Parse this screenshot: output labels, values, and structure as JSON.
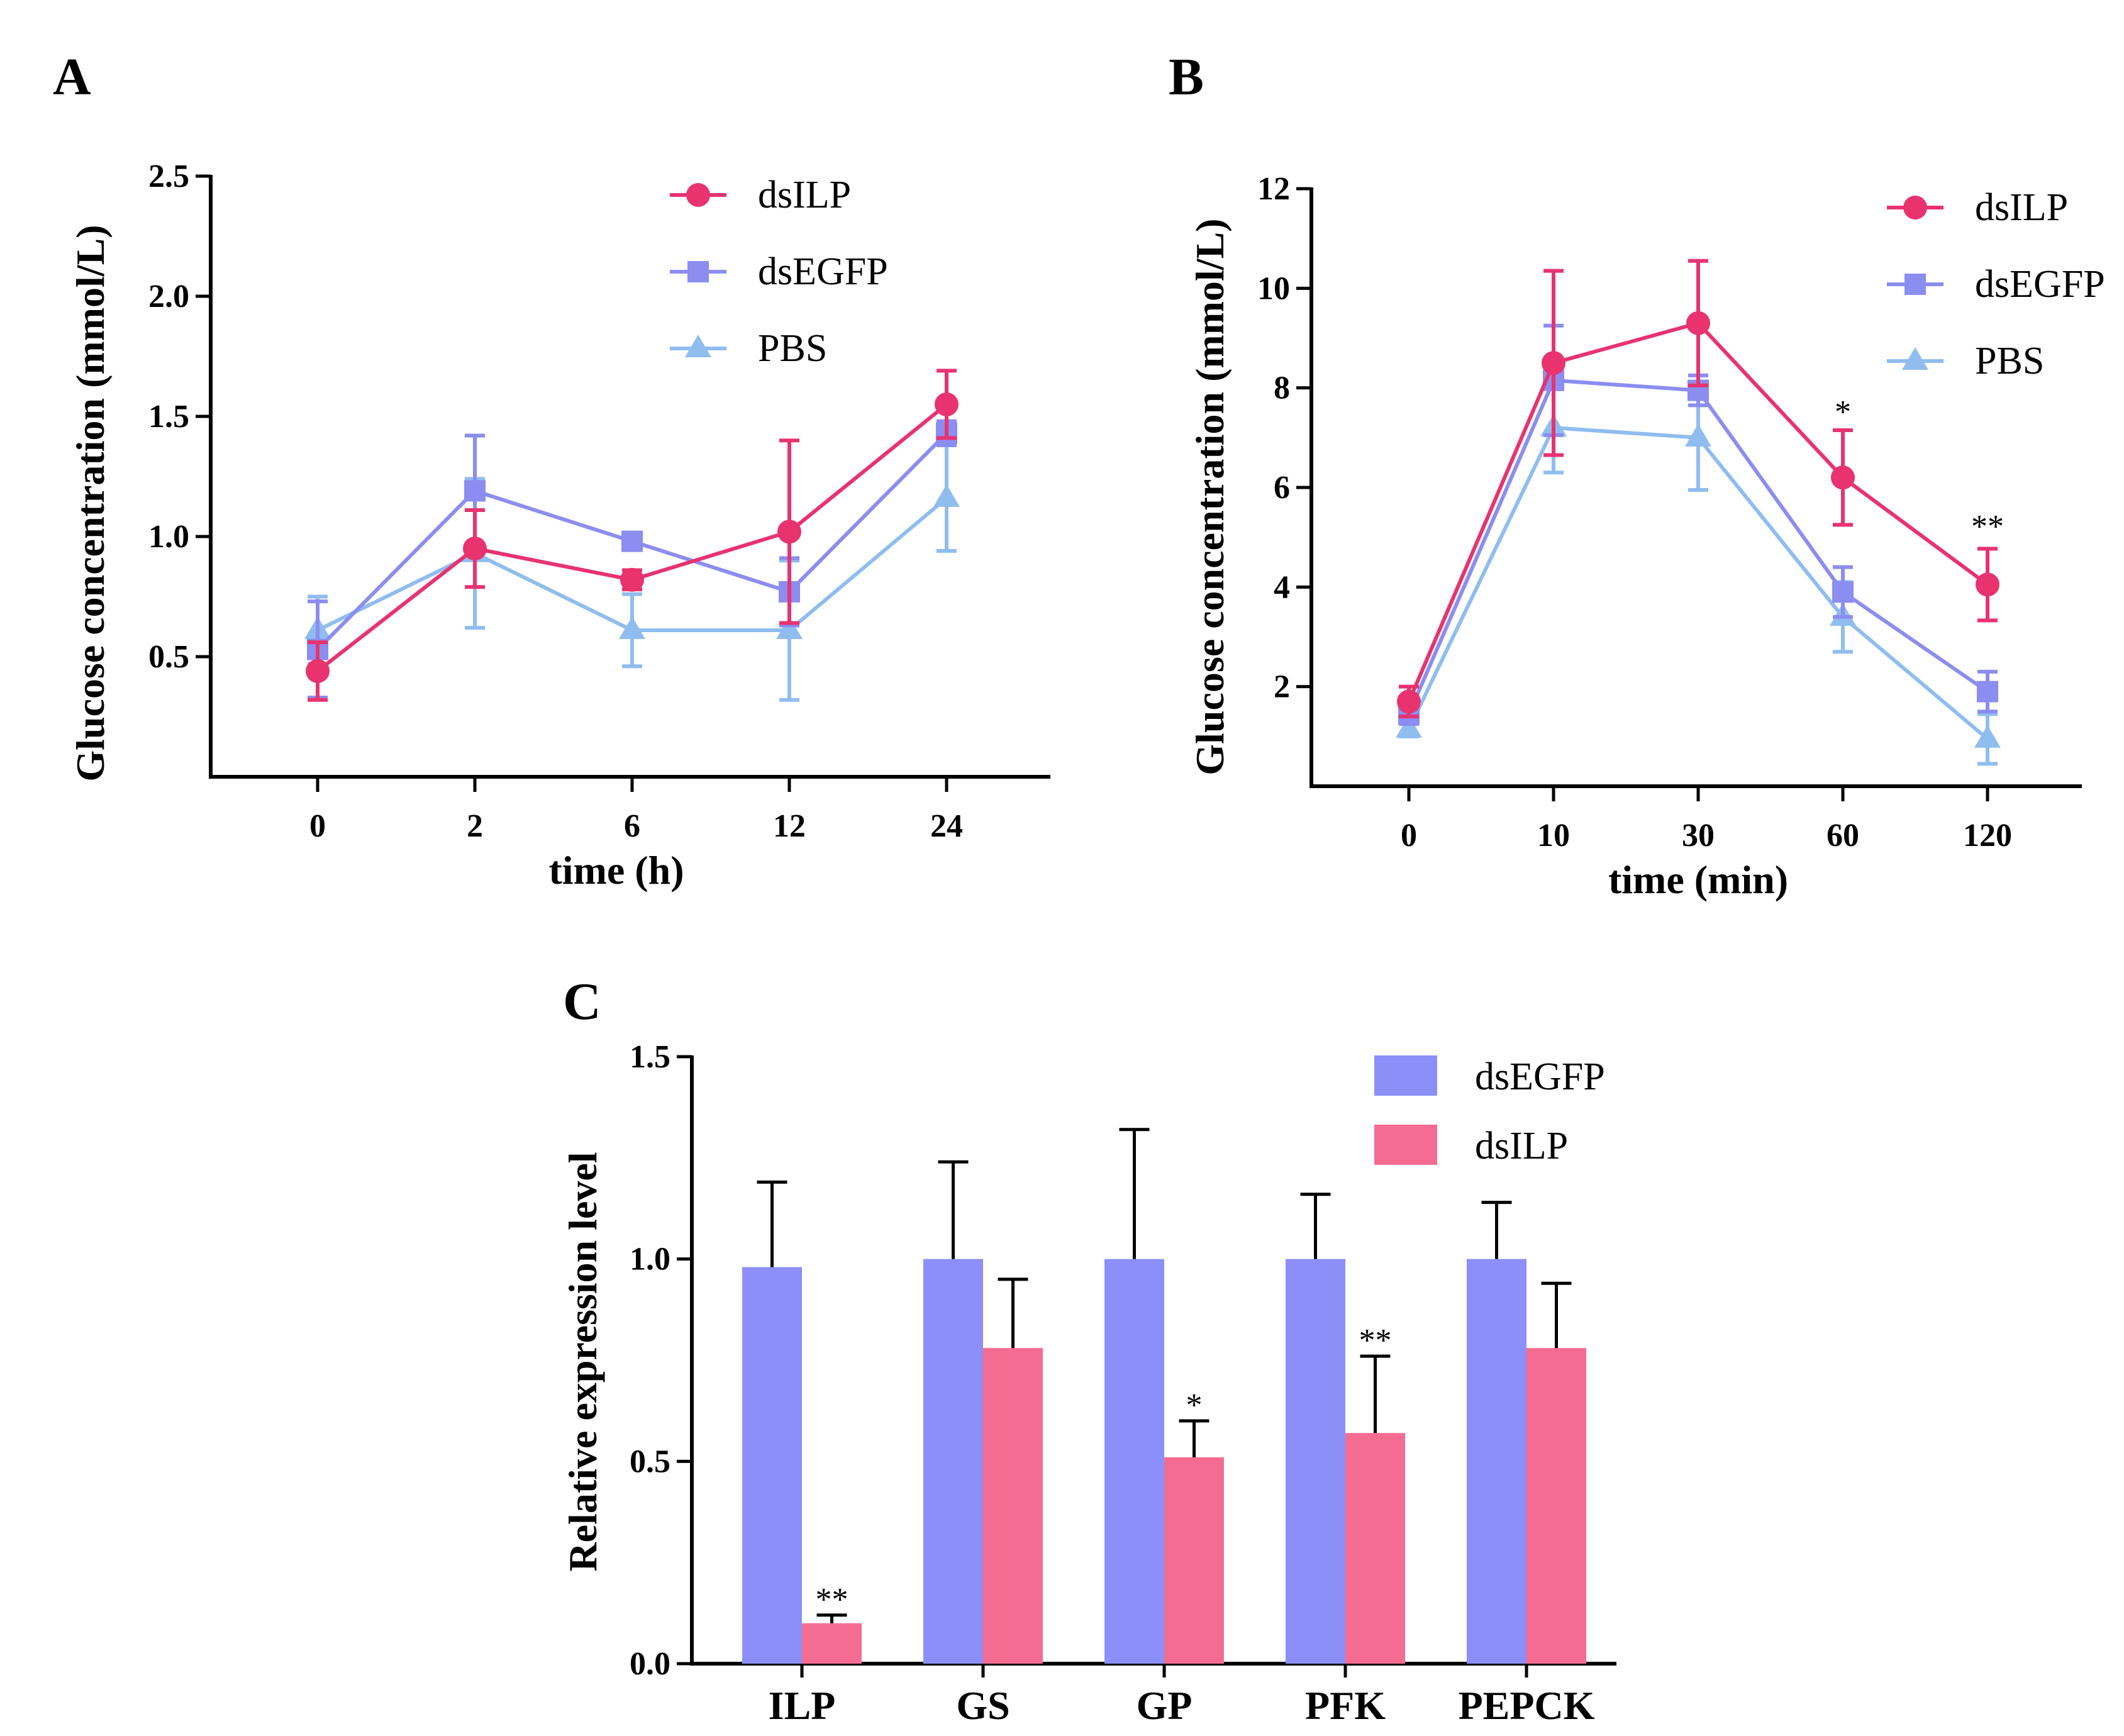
{
  "chart_data": [
    {
      "panel": "A",
      "type": "line",
      "xlabel": "time (h)",
      "ylabel": "Glucose concentration (mmol/L)",
      "categories": [
        "0",
        "2",
        "6",
        "12",
        "24"
      ],
      "ylim": [
        0,
        2.5
      ],
      "yticks": [
        "0.5",
        "1.0",
        "1.5",
        "2.0",
        "2.5"
      ],
      "yticks_values": [
        0.5,
        1.0,
        1.5,
        2.0,
        2.5
      ],
      "legend": [
        "dsILP",
        "dsEGFP",
        "PBS"
      ],
      "series": [
        {
          "name": "dsILP",
          "color": "#e8336f",
          "marker": "circle",
          "values": [
            0.44,
            0.95,
            0.82,
            1.02,
            1.55
          ],
          "errors": [
            0.12,
            0.16,
            0.04,
            0.38,
            0.14
          ]
        },
        {
          "name": "dsEGFP",
          "color": "#8b8df0",
          "marker": "square",
          "values": [
            0.53,
            1.19,
            0.98,
            0.77,
            1.43
          ],
          "errors": [
            0.2,
            0.23,
            0.03,
            0.14,
            0.05
          ]
        },
        {
          "name": "PBS",
          "color": "#8fbdf0",
          "marker": "triangle",
          "values": [
            0.61,
            0.93,
            0.61,
            0.61,
            1.16
          ],
          "errors": [
            0.14,
            0.31,
            0.15,
            0.29,
            0.22
          ]
        }
      ]
    },
    {
      "panel": "B",
      "type": "line",
      "xlabel": "time (min)",
      "ylabel": "Glucose concentration (mmol/L)",
      "categories": [
        "0",
        "10",
        "30",
        "60",
        "120"
      ],
      "ylim": [
        0,
        12
      ],
      "yticks": [
        "2",
        "4",
        "6",
        "8",
        "10",
        "12"
      ],
      "yticks_values": [
        2,
        4,
        6,
        8,
        10,
        12
      ],
      "legend": [
        "dsILP",
        "dsEGFP",
        "PBS"
      ],
      "annotations": [
        {
          "category_index": 3,
          "text": "*",
          "y": 7.3
        },
        {
          "category_index": 4,
          "text": "**",
          "y": 5.0
        }
      ],
      "series": [
        {
          "name": "dsILP",
          "color": "#e8336f",
          "marker": "circle",
          "values": [
            1.7,
            8.5,
            9.3,
            6.2,
            4.05
          ],
          "errors": [
            0.3,
            1.85,
            1.25,
            0.95,
            0.72
          ]
        },
        {
          "name": "dsEGFP",
          "color": "#8b8df0",
          "marker": "square",
          "values": [
            1.45,
            8.15,
            7.95,
            3.9,
            1.9
          ],
          "errors": [
            0.2,
            1.1,
            0.3,
            0.5,
            0.4
          ]
        },
        {
          "name": "PBS",
          "color": "#8fbdf0",
          "marker": "triangle",
          "values": [
            1.15,
            7.2,
            7.0,
            3.4,
            0.95
          ],
          "errors": [
            0.15,
            0.9,
            1.05,
            0.7,
            0.5
          ]
        }
      ]
    },
    {
      "panel": "C",
      "type": "bar",
      "xlabel": "",
      "ylabel": "Relative expression level",
      "categories": [
        "ILP",
        "GS",
        "GP",
        "PFK",
        "PEPCK"
      ],
      "ylim": [
        0,
        1.5
      ],
      "yticks": [
        "0.0",
        "0.5",
        "1.0",
        "1.5"
      ],
      "yticks_values": [
        0,
        0.5,
        1.0,
        1.5
      ],
      "legend": [
        "dsEGFP",
        "dsILP"
      ],
      "series": [
        {
          "name": "dsEGFP",
          "color": "#8b8ff7",
          "values": [
            0.98,
            1.0,
            1.0,
            1.0,
            1.0
          ],
          "errors": [
            0.21,
            0.24,
            0.32,
            0.16,
            0.14
          ]
        },
        {
          "name": "dsILP",
          "color": "#f56c93",
          "values": [
            0.1,
            0.78,
            0.51,
            0.57,
            0.78
          ],
          "errors": [
            0.02,
            0.17,
            0.09,
            0.19,
            0.16
          ]
        }
      ],
      "annotations": [
        {
          "category_index": 0,
          "series": 1,
          "text": "**"
        },
        {
          "category_index": 2,
          "series": 1,
          "text": "*"
        },
        {
          "category_index": 3,
          "series": 1,
          "text": "**"
        }
      ]
    }
  ]
}
